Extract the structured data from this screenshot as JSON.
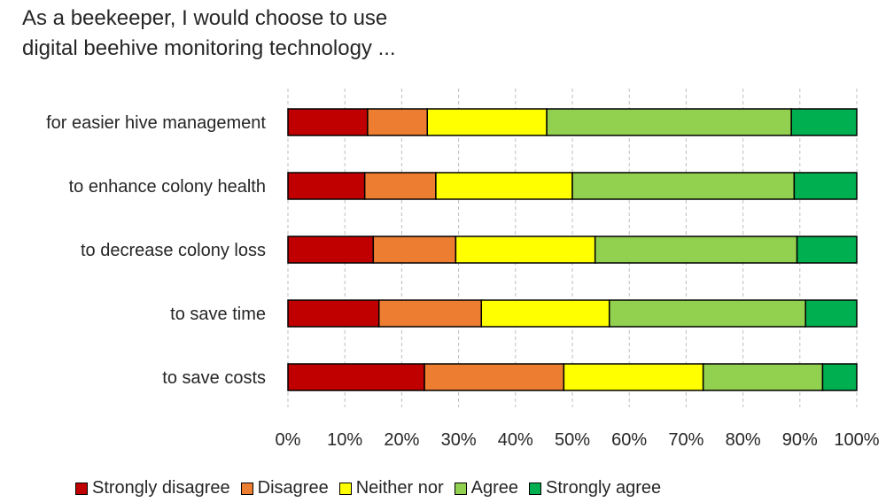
{
  "title_lines": [
    "As a beekeeper, I would choose to use",
    "digital beehive monitoring technology ..."
  ],
  "chart_data": {
    "type": "bar",
    "orientation": "horizontal",
    "stacked": true,
    "categories": [
      "for easier hive management",
      "to enhance colony health",
      "to decrease colony loss",
      "to save time",
      "to save costs"
    ],
    "series": [
      {
        "name": "Strongly disagree",
        "color": "#c00000",
        "values": [
          14,
          13.5,
          15,
          16,
          24
        ]
      },
      {
        "name": "Disagree",
        "color": "#ed7d31",
        "values": [
          10.5,
          12.5,
          14.5,
          18,
          24.5
        ]
      },
      {
        "name": "Neither nor",
        "color": "#ffff00",
        "values": [
          21,
          24,
          24.5,
          22.5,
          24.5
        ]
      },
      {
        "name": "Agree",
        "color": "#92d050",
        "values": [
          43,
          39,
          35.5,
          34.5,
          21
        ]
      },
      {
        "name": "Strongly agree",
        "color": "#00b050",
        "values": [
          11.5,
          11,
          10.5,
          9,
          6
        ]
      }
    ],
    "x_ticks": [
      "0%",
      "10%",
      "20%",
      "30%",
      "40%",
      "50%",
      "60%",
      "70%",
      "80%",
      "90%",
      "100%"
    ],
    "xlim": [
      0,
      100
    ],
    "x_unit": "%",
    "grid": "vertical dashed",
    "legend_position": "bottom"
  }
}
